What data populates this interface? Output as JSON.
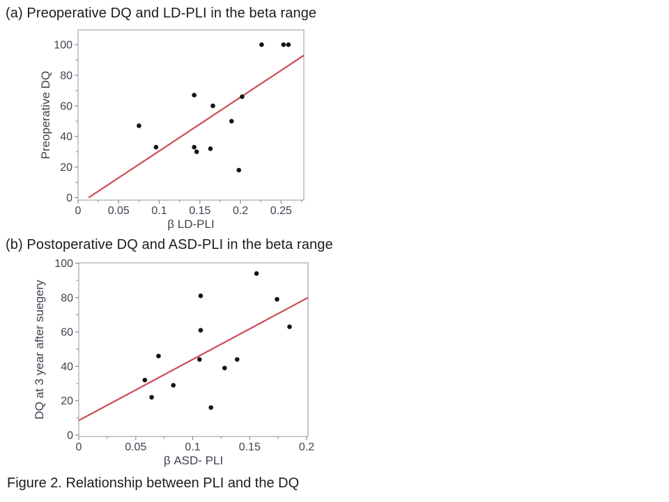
{
  "figure": {
    "caption": "Figure 2. Relationship between PLI and the DQ"
  },
  "colors": {
    "trendline": "#cd4a55",
    "point": "#141414",
    "frame": "#a6a6a6",
    "tick": "#8c8c8c",
    "tick_text": "#3e4250",
    "title_text": "#1c1c1c",
    "background": "#ffffff"
  },
  "chart_data": [
    {
      "id": "a",
      "type": "scatter",
      "title": "(a) Preoperative DQ and LD-PLI in the beta range",
      "xlabel": "β LD-PLI",
      "ylabel": "Preoperative DQ",
      "xlim": [
        0,
        0.278
      ],
      "ylim": [
        -1.6,
        109.6
      ],
      "x_ticks": [
        0,
        0.05,
        0.1,
        0.15,
        0.2,
        0.25
      ],
      "x_tick_labels": [
        "0",
        "0.05",
        "0.1",
        "0.15",
        "0.2",
        "0.25"
      ],
      "y_ticks": [
        0,
        20,
        40,
        60,
        80,
        100
      ],
      "y_tick_labels": [
        "0",
        "20",
        "40",
        "60",
        "80",
        "100"
      ],
      "grid": false,
      "legend": "none",
      "points": [
        [
          0.075,
          47
        ],
        [
          0.096,
          33
        ],
        [
          0.143,
          33
        ],
        [
          0.146,
          30
        ],
        [
          0.163,
          32
        ],
        [
          0.198,
          18
        ],
        [
          0.143,
          67
        ],
        [
          0.166,
          60
        ],
        [
          0.189,
          50
        ],
        [
          0.202,
          66
        ],
        [
          0.226,
          100
        ],
        [
          0.253,
          100
        ],
        [
          0.259,
          100
        ]
      ],
      "trendline": {
        "x1": 0.013,
        "y1": 0,
        "x2": 0.278,
        "y2": 93
      }
    },
    {
      "id": "b",
      "type": "scatter",
      "title": "(b) Postoperative DQ and ASD-PLI in the beta range",
      "xlabel": "β ASD- PLI",
      "ylabel": "DQ at 3 year after suegery",
      "xlim": [
        0,
        0.2012
      ],
      "ylim": [
        -0.8,
        100.2
      ],
      "x_ticks": [
        0,
        0.05,
        0.1,
        0.15,
        0.2
      ],
      "x_tick_labels": [
        "0",
        "0.05",
        "0.1",
        "0.15",
        "0.2"
      ],
      "y_ticks": [
        0,
        20,
        40,
        60,
        80,
        100
      ],
      "y_tick_labels": [
        "0",
        "20",
        "40",
        "60",
        "80",
        "100"
      ],
      "grid": false,
      "legend": "none",
      "points": [
        [
          0.058,
          32
        ],
        [
          0.064,
          22
        ],
        [
          0.07,
          46
        ],
        [
          0.083,
          29
        ],
        [
          0.106,
          44
        ],
        [
          0.107,
          61
        ],
        [
          0.107,
          81
        ],
        [
          0.116,
          16
        ],
        [
          0.128,
          39
        ],
        [
          0.139,
          44
        ],
        [
          0.156,
          94
        ],
        [
          0.174,
          79
        ],
        [
          0.185,
          63
        ]
      ],
      "trendline": {
        "x1": 0,
        "y1": 8.5,
        "x2": 0.2012,
        "y2": 80
      }
    }
  ]
}
